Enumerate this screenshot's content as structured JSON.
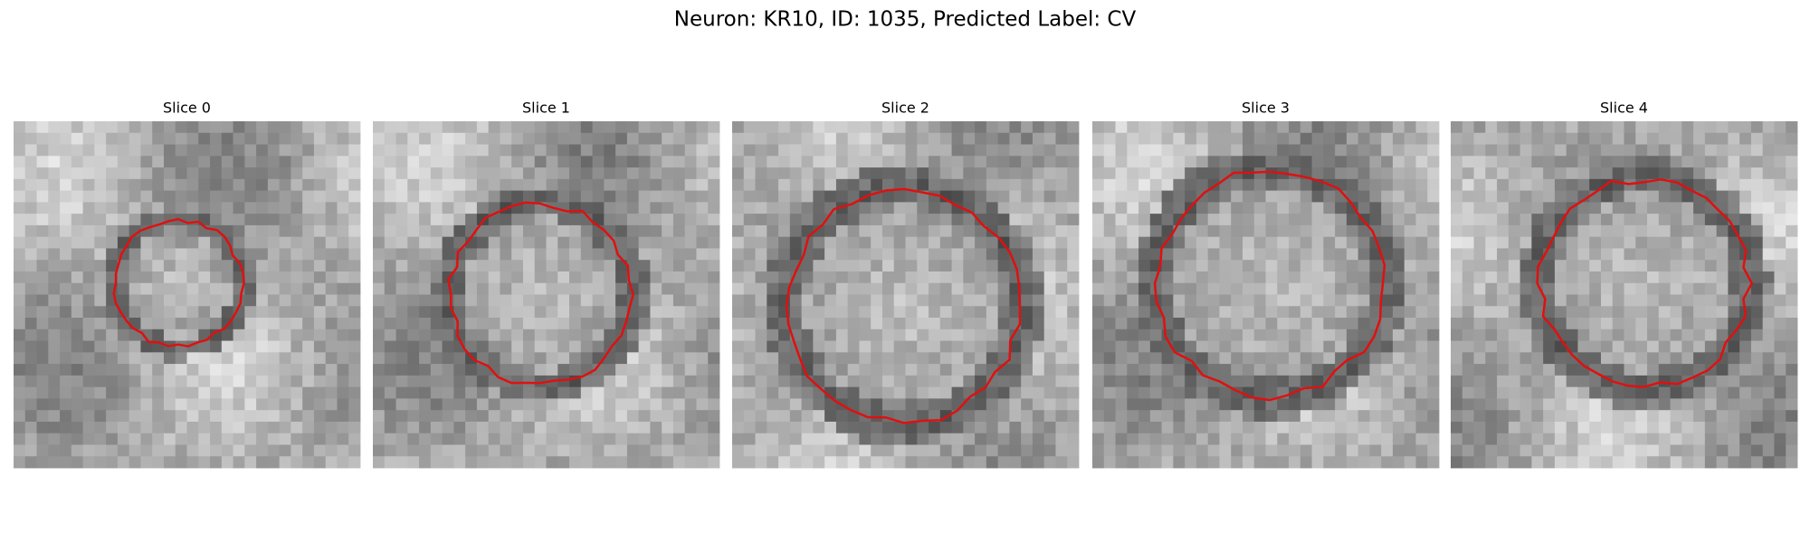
{
  "title": "Neuron: KR10, ID: 1035, Predicted Label: CV",
  "panels": [
    {
      "title": "Slice 0"
    },
    {
      "title": "Slice 1"
    },
    {
      "title": "Slice 2"
    },
    {
      "title": "Slice 3"
    },
    {
      "title": "Slice 4"
    }
  ]
}
